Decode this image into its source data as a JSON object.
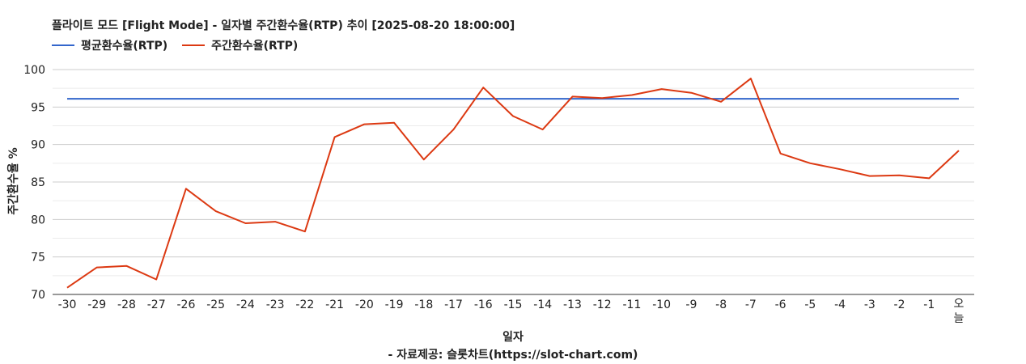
{
  "chart_data": {
    "type": "line",
    "title": "플라이트 모드 [Flight Mode] - 일자별 주간환수율(RTP) 추이 [2025-08-20 18:00:00]",
    "xlabel": "일자",
    "ylabel": "주간환수율 %",
    "source": "- 자료제공: 슬롯차트(https://slot-chart.com)",
    "categories": [
      "-30",
      "-29",
      "-28",
      "-27",
      "-26",
      "-25",
      "-24",
      "-23",
      "-22",
      "-21",
      "-20",
      "-19",
      "-18",
      "-17",
      "-16",
      "-15",
      "-14",
      "-13",
      "-12",
      "-11",
      "-10",
      "-9",
      "-8",
      "-7",
      "-6",
      "-5",
      "-4",
      "-3",
      "-2",
      "-1",
      "오늘"
    ],
    "ylim": [
      70,
      100
    ],
    "yticks": [
      70,
      75,
      80,
      85,
      90,
      95,
      100
    ],
    "grid": true,
    "legend_position": "top-left",
    "series": [
      {
        "name": "평균환수율(RTP)",
        "color": "#3366cc",
        "values": [
          96.1,
          96.1,
          96.1,
          96.1,
          96.1,
          96.1,
          96.1,
          96.1,
          96.1,
          96.1,
          96.1,
          96.1,
          96.1,
          96.1,
          96.1,
          96.1,
          96.1,
          96.1,
          96.1,
          96.1,
          96.1,
          96.1,
          96.1,
          96.1,
          96.1,
          96.1,
          96.1,
          96.1,
          96.1,
          96.1,
          96.1
        ]
      },
      {
        "name": "주간환수율(RTP)",
        "color": "#dc3912",
        "values": [
          70.9,
          73.6,
          73.8,
          72.0,
          84.1,
          81.1,
          79.5,
          79.7,
          78.4,
          91.0,
          92.7,
          92.9,
          88.0,
          92.0,
          97.6,
          93.8,
          92.0,
          96.4,
          96.2,
          96.6,
          97.4,
          96.9,
          95.7,
          98.8,
          88.8,
          87.5,
          86.7,
          85.8,
          85.9,
          85.5,
          89.2
        ]
      }
    ]
  }
}
